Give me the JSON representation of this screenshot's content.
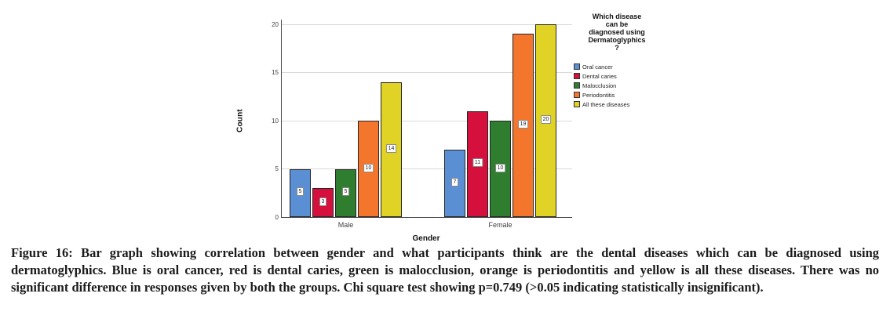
{
  "chart_data": {
    "type": "bar",
    "title": "",
    "xlabel": "Gender",
    "ylabel": "Count",
    "categories": [
      "Male",
      "Female"
    ],
    "series": [
      {
        "name": "Oral cancer",
        "color": "#5b8fd4",
        "values": [
          5,
          7
        ]
      },
      {
        "name": "Dental caries",
        "color": "#d6103c",
        "values": [
          3,
          11
        ]
      },
      {
        "name": "Malocclusion",
        "color": "#2f7d2f",
        "values": [
          5,
          10
        ]
      },
      {
        "name": "Periodontitis",
        "color": "#f4762d",
        "values": [
          10,
          19
        ]
      },
      {
        "name": "All these diseases",
        "color": "#e1d226",
        "values": [
          14,
          20
        ]
      }
    ],
    "ylim": [
      0,
      20
    ],
    "yticks": [
      0,
      5,
      10,
      15,
      20
    ],
    "grid": true,
    "bar_labels": true,
    "legend_position": "right",
    "legend_title": "Which disease\ncan be\ndiagnosed using\nDermatoglyphics\n?"
  },
  "caption": {
    "text": "Figure 16: Bar graph showing correlation between gender and what participants think are the dental diseases which can be diagnosed using dermatoglyphics. Blue is oral cancer, red is dental caries, green is malocclusion, orange is periodontitis and yellow is all these diseases. There was no significant difference in responses given by both the groups. Chi square test showing p=0.749 (>0.05 indicating statistically insignificant)."
  }
}
